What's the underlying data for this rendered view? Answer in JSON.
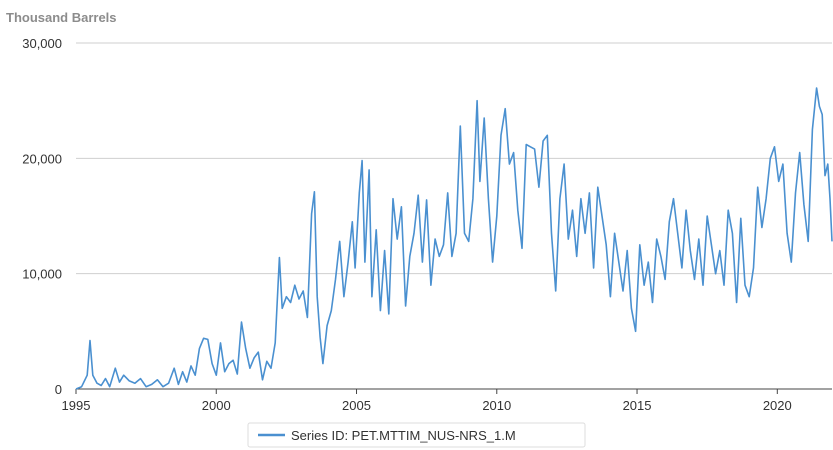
{
  "chart_data": {
    "type": "line",
    "units_label": "Thousand Barrels",
    "ylim": [
      0,
      30000
    ],
    "xlim": [
      1995.0,
      2021.95
    ],
    "y_ticks": [
      0,
      10000,
      20000,
      30000
    ],
    "y_tick_labels": [
      "0",
      "10,000",
      "20,000",
      "30,000"
    ],
    "x_ticks": [
      1995,
      2000,
      2005,
      2010,
      2015,
      2020
    ],
    "x_tick_labels": [
      "1995",
      "2000",
      "2005",
      "2010",
      "2015",
      "2020"
    ],
    "grid": true,
    "legend_position": "bottom",
    "series": [
      {
        "name": "Series ID: PET.MTTIM_NUS-NRS_1.M",
        "color": "#4a90d0",
        "points": [
          [
            1995.0,
            0
          ],
          [
            1995.2,
            200
          ],
          [
            1995.4,
            1200
          ],
          [
            1995.5,
            4200
          ],
          [
            1995.6,
            1200
          ],
          [
            1995.75,
            500
          ],
          [
            1995.9,
            300
          ],
          [
            1996.05,
            900
          ],
          [
            1996.2,
            200
          ],
          [
            1996.4,
            1800
          ],
          [
            1996.55,
            600
          ],
          [
            1996.7,
            1200
          ],
          [
            1996.9,
            700
          ],
          [
            1997.1,
            500
          ],
          [
            1997.3,
            900
          ],
          [
            1997.5,
            200
          ],
          [
            1997.7,
            400
          ],
          [
            1997.9,
            800
          ],
          [
            1998.1,
            200
          ],
          [
            1998.3,
            500
          ],
          [
            1998.5,
            1800
          ],
          [
            1998.65,
            400
          ],
          [
            1998.8,
            1500
          ],
          [
            1998.95,
            600
          ],
          [
            1999.1,
            2000
          ],
          [
            1999.25,
            1200
          ],
          [
            1999.4,
            3500
          ],
          [
            1999.55,
            4400
          ],
          [
            1999.7,
            4300
          ],
          [
            1999.85,
            2200
          ],
          [
            2000.0,
            1200
          ],
          [
            2000.15,
            4000
          ],
          [
            2000.3,
            1500
          ],
          [
            2000.45,
            2200
          ],
          [
            2000.6,
            2500
          ],
          [
            2000.75,
            1300
          ],
          [
            2000.9,
            5800
          ],
          [
            2001.05,
            3500
          ],
          [
            2001.2,
            1800
          ],
          [
            2001.35,
            2700
          ],
          [
            2001.5,
            3200
          ],
          [
            2001.65,
            800
          ],
          [
            2001.8,
            2400
          ],
          [
            2001.95,
            1800
          ],
          [
            2002.1,
            4000
          ],
          [
            2002.25,
            11400
          ],
          [
            2002.35,
            7000
          ],
          [
            2002.5,
            8000
          ],
          [
            2002.65,
            7500
          ],
          [
            2002.8,
            9000
          ],
          [
            2002.95,
            7800
          ],
          [
            2003.1,
            8500
          ],
          [
            2003.25,
            6200
          ],
          [
            2003.4,
            15200
          ],
          [
            2003.5,
            17100
          ],
          [
            2003.6,
            8000
          ],
          [
            2003.7,
            4500
          ],
          [
            2003.8,
            2200
          ],
          [
            2003.95,
            5500
          ],
          [
            2004.1,
            6800
          ],
          [
            2004.25,
            9500
          ],
          [
            2004.4,
            12800
          ],
          [
            2004.55,
            8000
          ],
          [
            2004.7,
            11000
          ],
          [
            2004.85,
            14500
          ],
          [
            2004.95,
            10500
          ],
          [
            2005.1,
            17000
          ],
          [
            2005.2,
            19800
          ],
          [
            2005.3,
            11000
          ],
          [
            2005.45,
            19000
          ],
          [
            2005.55,
            8000
          ],
          [
            2005.7,
            13800
          ],
          [
            2005.85,
            6800
          ],
          [
            2006.0,
            12000
          ],
          [
            2006.15,
            6500
          ],
          [
            2006.3,
            16500
          ],
          [
            2006.45,
            13000
          ],
          [
            2006.6,
            15800
          ],
          [
            2006.75,
            7200
          ],
          [
            2006.9,
            11500
          ],
          [
            2007.05,
            13500
          ],
          [
            2007.2,
            16800
          ],
          [
            2007.35,
            11000
          ],
          [
            2007.5,
            16400
          ],
          [
            2007.65,
            9000
          ],
          [
            2007.8,
            13000
          ],
          [
            2007.95,
            11500
          ],
          [
            2008.1,
            12500
          ],
          [
            2008.25,
            17000
          ],
          [
            2008.4,
            11500
          ],
          [
            2008.55,
            13500
          ],
          [
            2008.7,
            22800
          ],
          [
            2008.85,
            13500
          ],
          [
            2009.0,
            12800
          ],
          [
            2009.15,
            16500
          ],
          [
            2009.3,
            25000
          ],
          [
            2009.4,
            18000
          ],
          [
            2009.55,
            23500
          ],
          [
            2009.7,
            16500
          ],
          [
            2009.85,
            11000
          ],
          [
            2010.0,
            15000
          ],
          [
            2010.15,
            22000
          ],
          [
            2010.3,
            24300
          ],
          [
            2010.45,
            19500
          ],
          [
            2010.6,
            20500
          ],
          [
            2010.75,
            15500
          ],
          [
            2010.9,
            12200
          ],
          [
            2011.05,
            21200
          ],
          [
            2011.2,
            21000
          ],
          [
            2011.35,
            20800
          ],
          [
            2011.5,
            17500
          ],
          [
            2011.65,
            21500
          ],
          [
            2011.8,
            22000
          ],
          [
            2011.95,
            13500
          ],
          [
            2012.1,
            8500
          ],
          [
            2012.25,
            16500
          ],
          [
            2012.4,
            19500
          ],
          [
            2012.55,
            13000
          ],
          [
            2012.7,
            15500
          ],
          [
            2012.85,
            11500
          ],
          [
            2013.0,
            16500
          ],
          [
            2013.15,
            13500
          ],
          [
            2013.3,
            17000
          ],
          [
            2013.45,
            10500
          ],
          [
            2013.6,
            17500
          ],
          [
            2013.75,
            15000
          ],
          [
            2013.9,
            12500
          ],
          [
            2014.05,
            8000
          ],
          [
            2014.2,
            13500
          ],
          [
            2014.35,
            11000
          ],
          [
            2014.5,
            8500
          ],
          [
            2014.65,
            12000
          ],
          [
            2014.8,
            7000
          ],
          [
            2014.95,
            5000
          ],
          [
            2015.1,
            12500
          ],
          [
            2015.25,
            9000
          ],
          [
            2015.4,
            11000
          ],
          [
            2015.55,
            7500
          ],
          [
            2015.7,
            13000
          ],
          [
            2015.85,
            11500
          ],
          [
            2016.0,
            9500
          ],
          [
            2016.15,
            14500
          ],
          [
            2016.3,
            16500
          ],
          [
            2016.45,
            13500
          ],
          [
            2016.6,
            10500
          ],
          [
            2016.75,
            15500
          ],
          [
            2016.9,
            12000
          ],
          [
            2017.05,
            9500
          ],
          [
            2017.2,
            13000
          ],
          [
            2017.35,
            9000
          ],
          [
            2017.5,
            15000
          ],
          [
            2017.65,
            12500
          ],
          [
            2017.8,
            10000
          ],
          [
            2017.95,
            12000
          ],
          [
            2018.1,
            9000
          ],
          [
            2018.25,
            15500
          ],
          [
            2018.4,
            13500
          ],
          [
            2018.55,
            7500
          ],
          [
            2018.7,
            14800
          ],
          [
            2018.85,
            9000
          ],
          [
            2019.0,
            8000
          ],
          [
            2019.15,
            10500
          ],
          [
            2019.3,
            17500
          ],
          [
            2019.45,
            14000
          ],
          [
            2019.6,
            16500
          ],
          [
            2019.75,
            20000
          ],
          [
            2019.9,
            21000
          ],
          [
            2020.05,
            18000
          ],
          [
            2020.2,
            19500
          ],
          [
            2020.35,
            13500
          ],
          [
            2020.5,
            11000
          ],
          [
            2020.65,
            17000
          ],
          [
            2020.8,
            20500
          ],
          [
            2020.95,
            16000
          ],
          [
            2021.1,
            12800
          ],
          [
            2021.25,
            22500
          ],
          [
            2021.4,
            26100
          ],
          [
            2021.5,
            24500
          ],
          [
            2021.6,
            23800
          ],
          [
            2021.7,
            18500
          ],
          [
            2021.8,
            19500
          ],
          [
            2021.88,
            16500
          ],
          [
            2021.95,
            12800
          ]
        ]
      }
    ]
  }
}
